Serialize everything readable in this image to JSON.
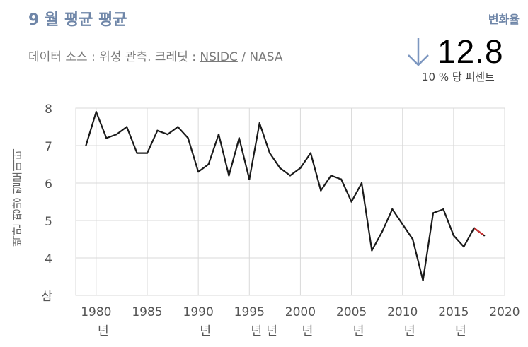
{
  "header": {
    "title": "9 월 평균 평균",
    "rate_label": "변화율",
    "source_prefix": "데이터 소스 : 위성 관측. 크레딧 : ",
    "source_link": "NSIDC",
    "source_suffix": " / NASA"
  },
  "stat": {
    "value": "12.8",
    "unit_text": "10 % 당 퍼센트",
    "direction": "down-arrow-icon"
  },
  "chart_data": {
    "type": "line",
    "ylabel": "백만 평방 킬로미터",
    "x": [
      1979,
      1980,
      1981,
      1982,
      1983,
      1984,
      1985,
      1986,
      1987,
      1988,
      1989,
      1990,
      1991,
      1992,
      1993,
      1994,
      1995,
      1996,
      1997,
      1998,
      1999,
      2000,
      2001,
      2002,
      2003,
      2004,
      2005,
      2006,
      2007,
      2008,
      2009,
      2010,
      2011,
      2012,
      2013,
      2014,
      2015,
      2016,
      2017,
      2018
    ],
    "values": [
      7.0,
      7.9,
      7.2,
      7.3,
      7.5,
      6.8,
      6.8,
      7.4,
      7.3,
      7.5,
      7.2,
      6.3,
      6.5,
      7.3,
      6.2,
      7.2,
      6.1,
      7.6,
      6.8,
      6.4,
      6.2,
      6.4,
      6.8,
      5.8,
      6.2,
      6.1,
      5.5,
      6.0,
      4.2,
      4.7,
      5.3,
      4.9,
      4.5,
      3.4,
      5.2,
      5.3,
      4.6,
      4.3,
      4.8,
      4.6
    ],
    "xlim": [
      1978,
      2020
    ],
    "ylim": [
      3,
      8
    ],
    "y_ticks": [
      "삼",
      "4",
      "5",
      "6",
      "7",
      "8"
    ],
    "x_ticks": [
      {
        "label": "1980",
        "suffix": "년"
      },
      {
        "label": "1985",
        "suffix": ""
      },
      {
        "label": "1990",
        "suffix": "년"
      },
      {
        "label": "1995",
        "suffix": "년"
      },
      {
        "label": "2000",
        "suffix": "년"
      },
      {
        "label": "2005",
        "suffix": "년"
      },
      {
        "label": "2010",
        "suffix": "년"
      },
      {
        "label": "2015",
        "suffix": "년"
      },
      {
        "label": "2020",
        "suffix": ""
      }
    ],
    "extra_label": "년",
    "grid": true,
    "colors": {
      "line": "#1a1a1a",
      "last_point": "#cc3333",
      "grid": "#d9d9d9",
      "accent": "#6f86a8"
    }
  }
}
